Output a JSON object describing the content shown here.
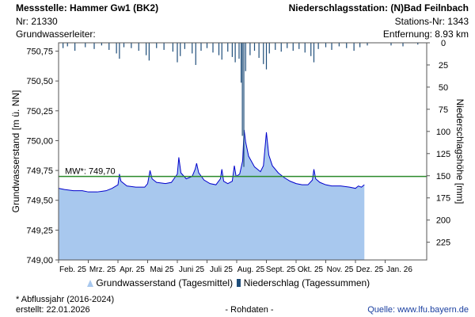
{
  "header": {
    "station_title": "Messstelle: Hammer Gw1 (BK2)",
    "station_nr": "Nr: 21330",
    "aquifer": "Grundwasserleiter:",
    "precip_station": "Niederschlagsstation: (N)Bad Feilnbach",
    "precip_station_nr": "Stations-Nr: 1343",
    "distance": "Entfernung: 8.93 km"
  },
  "legend": {
    "gw_label": "Grundwasserstand (Tagesmittel)",
    "precip_label": "Niederschlag (Tagessummen)"
  },
  "footer": {
    "note": "* Abflussjahr (2016-2024)",
    "created": "erstellt:   22.01.2026",
    "raw": "- Rohdaten -",
    "source": "Quelle: www.lfu.bayern.de"
  },
  "chart_data": {
    "type": "area",
    "left_axis_label": "Grundwasserstand [m ü. NN]",
    "right_axis_label": "Niederschlagshöhe [mm]",
    "y_ticks": [
      "749,00",
      "749,25",
      "749,50",
      "749,75",
      "750,00",
      "750,25",
      "750,50",
      "750,75"
    ],
    "ylim": [
      749.0,
      750.82
    ],
    "y2_ticks": [
      "0",
      "25",
      "50",
      "75",
      "100",
      "125",
      "150",
      "175",
      "200",
      "225"
    ],
    "y2lim": [
      0,
      245
    ],
    "x_ticks": [
      "Feb. 25",
      "Mrz. 25",
      "Apr. 25",
      "Mai 25",
      "Juni 25",
      "Juli 25",
      "Aug. 25",
      "Sept. 25",
      "Okt. 25",
      "Nov. 25",
      "Dez. 25",
      "Jan. 26"
    ],
    "xlim_months": [
      0,
      12.4
    ],
    "mean_label": "MW*: 749,70",
    "mean_value": 749.7,
    "colors": {
      "area_fill": "#a8c8ee",
      "gw_line": "#0000cc",
      "precip": "#1f4e7a",
      "mean_line": "#2a8a2a"
    },
    "gw_series": [
      [
        0.0,
        749.6
      ],
      [
        0.2,
        749.59
      ],
      [
        0.5,
        749.58
      ],
      [
        0.8,
        749.58
      ],
      [
        1.0,
        749.57
      ],
      [
        1.3,
        749.57
      ],
      [
        1.6,
        749.58
      ],
      [
        1.8,
        749.6
      ],
      [
        2.0,
        749.63
      ],
      [
        2.05,
        749.72
      ],
      [
        2.1,
        749.66
      ],
      [
        2.3,
        749.62
      ],
      [
        2.6,
        749.61
      ],
      [
        2.9,
        749.61
      ],
      [
        3.0,
        749.64
      ],
      [
        3.08,
        749.75
      ],
      [
        3.15,
        749.68
      ],
      [
        3.3,
        749.65
      ],
      [
        3.6,
        749.64
      ],
      [
        3.8,
        749.65
      ],
      [
        4.0,
        749.72
      ],
      [
        4.05,
        749.86
      ],
      [
        4.12,
        749.73
      ],
      [
        4.3,
        749.68
      ],
      [
        4.5,
        749.7
      ],
      [
        4.6,
        749.76
      ],
      [
        4.65,
        749.81
      ],
      [
        4.72,
        749.73
      ],
      [
        4.9,
        749.67
      ],
      [
        5.1,
        749.64
      ],
      [
        5.3,
        749.63
      ],
      [
        5.45,
        749.68
      ],
      [
        5.5,
        749.76
      ],
      [
        5.56,
        749.66
      ],
      [
        5.7,
        749.64
      ],
      [
        5.85,
        749.66
      ],
      [
        5.92,
        749.79
      ],
      [
        5.98,
        749.7
      ],
      [
        6.1,
        749.72
      ],
      [
        6.2,
        749.83
      ],
      [
        6.25,
        750.09
      ],
      [
        6.3,
        749.99
      ],
      [
        6.4,
        749.87
      ],
      [
        6.6,
        749.78
      ],
      [
        6.8,
        749.74
      ],
      [
        6.9,
        749.79
      ],
      [
        7.0,
        750.07
      ],
      [
        7.08,
        749.88
      ],
      [
        7.2,
        749.79
      ],
      [
        7.4,
        749.73
      ],
      [
        7.6,
        749.69
      ],
      [
        7.8,
        749.66
      ],
      [
        8.0,
        749.64
      ],
      [
        8.2,
        749.63
      ],
      [
        8.4,
        749.63
      ],
      [
        8.55,
        749.67
      ],
      [
        8.6,
        749.76
      ],
      [
        8.66,
        749.68
      ],
      [
        8.8,
        749.65
      ],
      [
        9.0,
        749.63
      ],
      [
        9.2,
        749.62
      ],
      [
        9.5,
        749.62
      ],
      [
        9.8,
        749.61
      ],
      [
        10.0,
        749.6
      ],
      [
        10.1,
        749.62
      ],
      [
        10.2,
        749.61
      ],
      [
        10.3,
        749.63
      ]
    ],
    "precip_series": [
      [
        0.15,
        6
      ],
      [
        0.3,
        4
      ],
      [
        0.55,
        9
      ],
      [
        0.9,
        5
      ],
      [
        1.2,
        7
      ],
      [
        1.45,
        3
      ],
      [
        1.7,
        8
      ],
      [
        1.95,
        12
      ],
      [
        2.05,
        18
      ],
      [
        2.2,
        5
      ],
      [
        2.45,
        6
      ],
      [
        2.7,
        9
      ],
      [
        2.95,
        14
      ],
      [
        3.05,
        20
      ],
      [
        3.3,
        6
      ],
      [
        3.55,
        8
      ],
      [
        3.85,
        10
      ],
      [
        4.0,
        22
      ],
      [
        4.1,
        15
      ],
      [
        4.25,
        7
      ],
      [
        4.5,
        12
      ],
      [
        4.62,
        25
      ],
      [
        4.8,
        9
      ],
      [
        5.0,
        6
      ],
      [
        5.2,
        11
      ],
      [
        5.4,
        14
      ],
      [
        5.5,
        19
      ],
      [
        5.7,
        10
      ],
      [
        5.85,
        16
      ],
      [
        5.95,
        22
      ],
      [
        6.08,
        18
      ],
      [
        6.15,
        45
      ],
      [
        6.19,
        105
      ],
      [
        6.24,
        140
      ],
      [
        6.3,
        32
      ],
      [
        6.45,
        14
      ],
      [
        6.6,
        9
      ],
      [
        6.75,
        17
      ],
      [
        6.9,
        24
      ],
      [
        7.0,
        30
      ],
      [
        7.1,
        12
      ],
      [
        7.3,
        8
      ],
      [
        7.5,
        10
      ],
      [
        7.7,
        6
      ],
      [
        7.9,
        9
      ],
      [
        8.1,
        7
      ],
      [
        8.3,
        11
      ],
      [
        8.5,
        15
      ],
      [
        8.6,
        22
      ],
      [
        8.75,
        7
      ],
      [
        9.0,
        5
      ],
      [
        9.2,
        8
      ],
      [
        9.45,
        4
      ],
      [
        9.7,
        6
      ],
      [
        9.95,
        9
      ],
      [
        10.15,
        5
      ],
      [
        10.4,
        3
      ],
      [
        11.2,
        3
      ],
      [
        11.6,
        4
      ],
      [
        12.1,
        2
      ]
    ]
  }
}
